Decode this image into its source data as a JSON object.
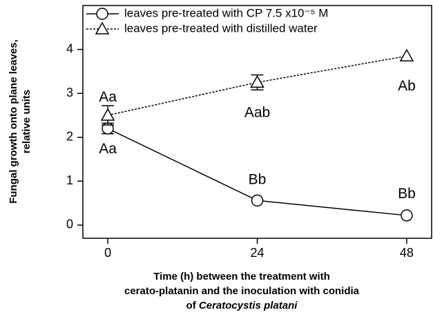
{
  "chart_data": {
    "type": "line",
    "y_label": [
      "Fungal growth onto plane leaves,",
      "relative units"
    ],
    "x_label": [
      "Time (h) between the treatment with",
      "cerato-platanin and the inoculation with conidia"
    ],
    "x_label_tail": "of",
    "x_label_species": "Ceratocystis platani",
    "x": [
      0,
      24,
      48
    ],
    "series": [
      {
        "name": "leaves pre-treated with CP 7.5 x10⁻⁵ M",
        "color": "#000000",
        "marker": "circle",
        "dash": "solid",
        "values": [
          2.2,
          0.56,
          0.22
        ],
        "errors": [
          0.12,
          null,
          null
        ]
      },
      {
        "name": "leaves pre-treated with distilled water",
        "color": "#000000",
        "marker": "triangle",
        "dash": "dotted",
        "values": [
          2.5,
          3.25,
          3.85
        ],
        "errors": [
          0.22,
          0.17,
          null
        ]
      }
    ],
    "annotations": [
      {
        "text": "Aa",
        "x": 0,
        "y": 2.9
      },
      {
        "text": "Aa",
        "x": 0,
        "y": 1.72
      },
      {
        "text": "Aab",
        "x": 24,
        "y": 2.55
      },
      {
        "text": "Ab",
        "x": 48,
        "y": 3.15
      },
      {
        "text": "Bb",
        "x": 24,
        "y": 1.02
      },
      {
        "text": "Bb",
        "x": 48,
        "y": 0.7
      }
    ],
    "xlim": [
      -4,
      52
    ],
    "xticks": [
      0,
      24,
      48
    ],
    "ylim": [
      -0.3,
      5
    ],
    "yticks": [
      0,
      1,
      2,
      3,
      4
    ],
    "legend": "upper-left"
  }
}
